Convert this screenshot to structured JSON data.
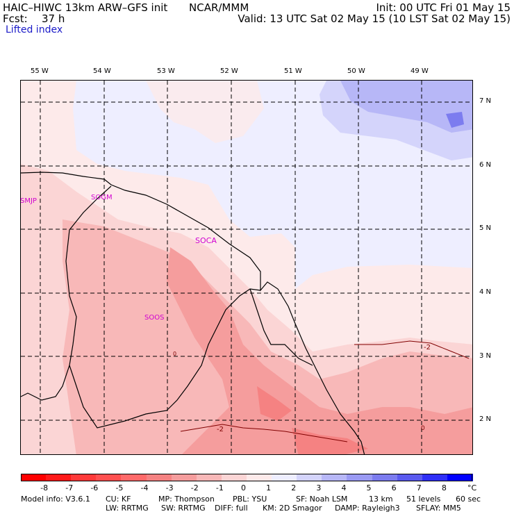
{
  "header": {
    "model_title": "HAIC–HIWC 13km ARW–GFS init",
    "center": "NCAR/MMM",
    "init": "Init: 00 UTC Fri 01 May 15",
    "fcst_label": "Fcst:",
    "fcst_value": "37 h",
    "valid": "Valid: 13 UTC Sat 02 May 15 (10 LST Sat 02 May 15)",
    "field": "Lifted index"
  },
  "map": {
    "lon_labels": [
      "55 W",
      "54 W",
      "53 W",
      "52 W",
      "51 W",
      "50 W",
      "49 W"
    ],
    "lat_labels": [
      "7 N",
      "6 N",
      "5 N",
      "4 N",
      "3 N",
      "2 N"
    ],
    "stations": [
      "SMJP",
      "SOGM",
      "SOCA",
      "SOOS"
    ],
    "contour_labels": [
      "-2",
      "-2",
      "0",
      "0"
    ],
    "grid_style": "dashed"
  },
  "colorbar": {
    "levels": [
      "-8",
      "-7",
      "-6",
      "-5",
      "-4",
      "-3",
      "-2",
      "-1",
      "0",
      "1",
      "2",
      "3",
      "4",
      "5",
      "6",
      "7",
      "8"
    ],
    "unit": "°C",
    "colors": [
      "#ff1a1a",
      "#ff3a3a",
      "#ff5050",
      "#ff6a6a",
      "#f58282",
      "#f59d9d",
      "#f8b8b8",
      "#fbd5d5",
      "#fdeaea",
      "#eeeeff",
      "#d4d4fb",
      "#b7b7f7",
      "#9a9af3",
      "#7c7cef",
      "#5a5aef",
      "#2f2ff7",
      "#0000ff"
    ]
  },
  "footer": {
    "line1": [
      "Model info: V3.6.1",
      "CU: KF",
      "MP: Thompson",
      "PBL: YSU",
      "SF: Noah LSM",
      "13 km",
      "51 levels",
      "60 sec"
    ],
    "line2": [
      "LW: RRTMG",
      "SW: RRTMG",
      "DIFF: full",
      "KM: 2D Smagor",
      "DAMP: Rayleigh3",
      "SFLAY: MM5"
    ]
  }
}
